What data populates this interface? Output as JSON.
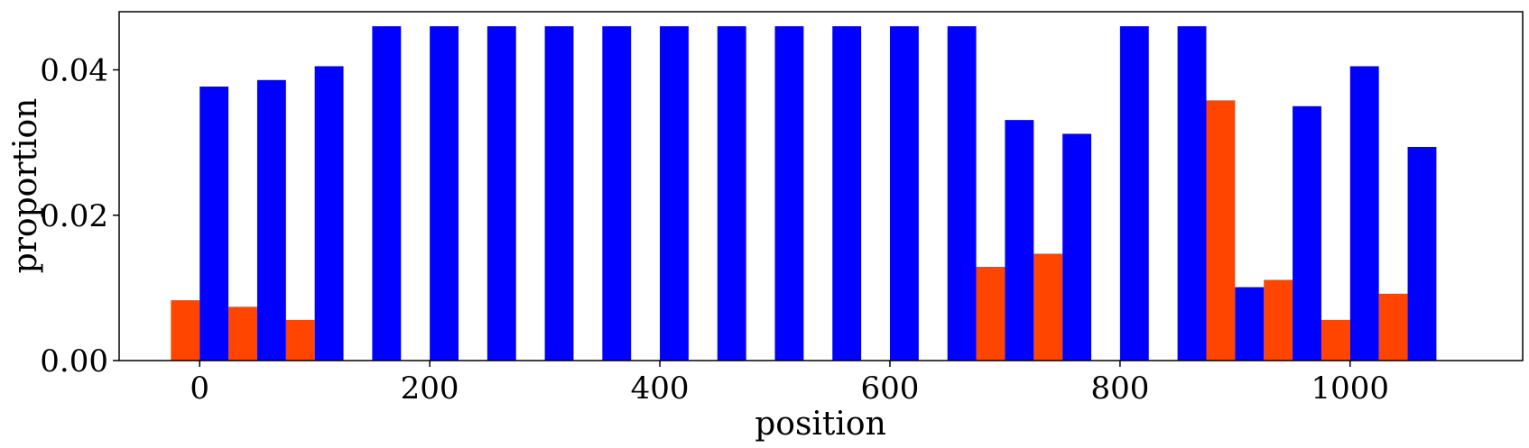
{
  "chart_data": {
    "type": "bar",
    "xlabel": "position",
    "ylabel": "proportion",
    "xlim": [
      -70,
      1150
    ],
    "ylim": [
      0,
      0.048
    ],
    "xticks": [
      0,
      200,
      400,
      600,
      800,
      1000
    ],
    "xtick_labels": [
      "0",
      "200",
      "400",
      "600",
      "800",
      "1000"
    ],
    "yticks": [
      0,
      0.02,
      0.04
    ],
    "ytick_labels": [
      "0.00",
      "0.02",
      "0.04"
    ],
    "grid": false,
    "bar_width": 25,
    "series": [
      {
        "color": "#ff4500",
        "offset": -12.5,
        "x": [
          0,
          50,
          100,
          150,
          200,
          250,
          300,
          350,
          400,
          450,
          500,
          550,
          600,
          650,
          700,
          750,
          800,
          850,
          900,
          950,
          1000,
          1050
        ],
        "values": [
          0.0083,
          0.0074,
          0.0056,
          0,
          0,
          0,
          0,
          0,
          0,
          0,
          0,
          0,
          0,
          0,
          0.0129,
          0.0147,
          0,
          0,
          0.0358,
          0.0111,
          0.0056,
          0.0092
        ]
      },
      {
        "color": "#0000ff",
        "offset": 12.5,
        "x": [
          0,
          50,
          100,
          150,
          200,
          250,
          300,
          350,
          400,
          450,
          500,
          550,
          600,
          650,
          700,
          750,
          800,
          850,
          900,
          950,
          1000,
          1050
        ],
        "values": [
          0.0377,
          0.0386,
          0.0405,
          0.046,
          0.046,
          0.046,
          0.046,
          0.046,
          0.046,
          0.046,
          0.046,
          0.046,
          0.046,
          0.046,
          0.0331,
          0.0312,
          0.046,
          0.046,
          0.0101,
          0.035,
          0.0405,
          0.0294
        ]
      }
    ]
  }
}
